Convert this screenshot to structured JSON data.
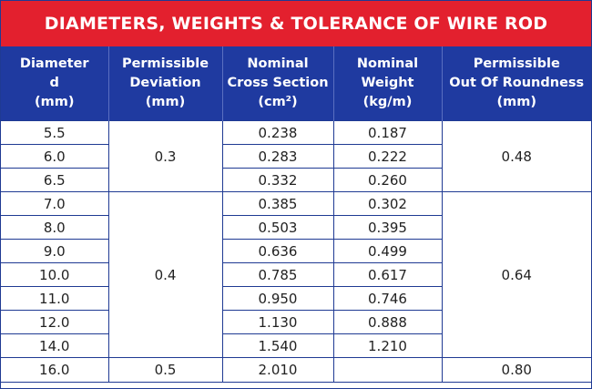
{
  "title": "DIAMETERS, WEIGHTS & TOLERANCE OF WIRE ROD",
  "headers": {
    "diameter": [
      "Diameter",
      "d",
      "(mm)"
    ],
    "deviation": [
      "Permissible",
      "Deviation",
      "(mm)"
    ],
    "cross_section": [
      "Nominal",
      "Cross Section",
      "(cm²)"
    ],
    "weight": [
      "Nominal",
      "Weight",
      "(kg/m)"
    ],
    "roundness": [
      "Permissible",
      "Out Of Roundness",
      "(mm)"
    ]
  },
  "rows": [
    {
      "diameter": "5.5",
      "cross_section": "0.238",
      "weight": "0.187"
    },
    {
      "diameter": "6.0",
      "cross_section": "0.283",
      "weight": "0.222"
    },
    {
      "diameter": "6.5",
      "cross_section": "0.332",
      "weight": "0.260"
    },
    {
      "diameter": "7.0",
      "cross_section": "0.385",
      "weight": "0.302"
    },
    {
      "diameter": "8.0",
      "cross_section": "0.503",
      "weight": "0.395"
    },
    {
      "diameter": "9.0",
      "cross_section": "0.636",
      "weight": "0.499"
    },
    {
      "diameter": "10.0",
      "cross_section": "0.785",
      "weight": "0.617"
    },
    {
      "diameter": "11.0",
      "cross_section": "0.950",
      "weight": "0.746"
    },
    {
      "diameter": "12.0",
      "cross_section": "1.130",
      "weight": "0.888"
    },
    {
      "diameter": "14.0",
      "cross_section": "1.540",
      "weight": "1.210"
    },
    {
      "diameter": "16.0",
      "cross_section": "2.010",
      "weight": ""
    }
  ],
  "groups": [
    {
      "deviation": "0.3",
      "roundness": "0.48"
    },
    {
      "deviation": "0.4",
      "roundness": "0.64"
    },
    {
      "deviation": "0.5",
      "roundness": "0.80"
    }
  ]
}
